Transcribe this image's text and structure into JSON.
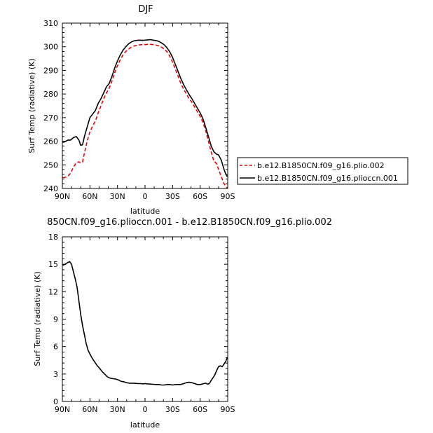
{
  "chart_data": [
    {
      "type": "line",
      "title": "DJF",
      "xlabel": "latitude",
      "ylabel": "Surf Temp (radiative) (K)",
      "xlim": [
        90,
        -90
      ],
      "ylim": [
        240,
        310
      ],
      "xticks": [
        90,
        60,
        30,
        0,
        -30,
        -60,
        -90
      ],
      "xtick_labels": [
        "90N",
        "60N",
        "30N",
        "0",
        "30S",
        "60S",
        "90S"
      ],
      "yticks": [
        240,
        250,
        260,
        270,
        280,
        290,
        300,
        310
      ],
      "ytick_labels": [
        "240",
        "250",
        "260",
        "270",
        "280",
        "290",
        "300",
        "310"
      ],
      "legend_position": "right",
      "series": [
        {
          "name": "b.e12.B1850CN.f09_g16.plio.002",
          "color": "#ee0000",
          "dash": true,
          "x": [
            89.5,
            87,
            84,
            81,
            78,
            75,
            72,
            70,
            68,
            66,
            63,
            60,
            57,
            54,
            51,
            48,
            45,
            42,
            39,
            36,
            33,
            30,
            27,
            24,
            21,
            18,
            15,
            12,
            9,
            6,
            3,
            0,
            -3,
            -6,
            -9,
            -12,
            -15,
            -18,
            -21,
            -24,
            -27,
            -30,
            -33,
            -36,
            -39,
            -42,
            -45,
            -48,
            -51,
            -54,
            -57,
            -60,
            -63,
            -66,
            -69,
            -72,
            -75,
            -78,
            -80,
            -83,
            -86,
            -88,
            -89.5
          ],
          "y": [
            244.5,
            244.7,
            245.2,
            246.5,
            249.0,
            250.8,
            251.3,
            250.8,
            251.2,
            255.0,
            260.0,
            264.0,
            266.5,
            268.5,
            272.0,
            275.0,
            278.0,
            280.5,
            282.5,
            285.5,
            289.0,
            292.0,
            294.5,
            296.5,
            298.0,
            299.0,
            299.8,
            300.3,
            300.6,
            300.8,
            300.9,
            300.9,
            301.0,
            301.0,
            300.9,
            300.7,
            300.4,
            299.8,
            299.0,
            297.8,
            296.0,
            293.5,
            290.5,
            287.5,
            284.5,
            282.0,
            280.0,
            278.0,
            276.5,
            274.5,
            272.5,
            270.5,
            268.0,
            264.5,
            260.0,
            255.5,
            251.5,
            250.5,
            248.0,
            245.0,
            242.0,
            241.0,
            240.0
          ]
        },
        {
          "name": "b.e12.B1850CN.f09_g16.plioccn.001",
          "color": "#000000",
          "dash": false,
          "x": [
            89.5,
            87,
            84,
            81,
            78,
            75,
            72,
            70,
            68,
            66,
            63,
            60,
            57,
            54,
            51,
            48,
            45,
            42,
            39,
            36,
            33,
            30,
            27,
            24,
            21,
            18,
            15,
            12,
            9,
            6,
            3,
            0,
            -3,
            -6,
            -9,
            -12,
            -15,
            -18,
            -21,
            -24,
            -27,
            -30,
            -33,
            -36,
            -39,
            -42,
            -45,
            -48,
            -51,
            -54,
            -57,
            -60,
            -63,
            -66,
            -69,
            -72,
            -75,
            -78,
            -80,
            -83,
            -86,
            -88,
            -89.5
          ],
          "y": [
            259.5,
            259.8,
            260.5,
            260.5,
            261.5,
            262.0,
            260.5,
            258.3,
            258.5,
            262.0,
            266.0,
            270.0,
            271.5,
            273.0,
            276.0,
            278.0,
            280.5,
            283.0,
            284.5,
            287.5,
            291.0,
            294.0,
            296.5,
            298.5,
            300.0,
            301.2,
            302.0,
            302.5,
            302.7,
            302.8,
            302.7,
            302.8,
            302.9,
            303.0,
            302.8,
            302.6,
            302.3,
            301.6,
            300.8,
            299.5,
            297.8,
            295.5,
            292.5,
            289.5,
            286.5,
            284.0,
            281.8,
            279.8,
            278.0,
            276.0,
            274.0,
            272.0,
            269.5,
            266.0,
            262.0,
            258.0,
            255.5,
            254.5,
            254.2,
            252.0,
            248.0,
            246.0,
            245.0
          ]
        }
      ]
    },
    {
      "type": "line",
      "title": "850CN.f09_g16.plioccn.001 - b.e12.B1850CN.f09_g16.plio.002",
      "xlabel": "latitude",
      "ylabel": "Surf Temp (radiative) (K)",
      "xlim": [
        90,
        -90
      ],
      "ylim": [
        0,
        18
      ],
      "xticks": [
        90,
        60,
        30,
        0,
        -30,
        -60,
        -90
      ],
      "xtick_labels": [
        "90N",
        "60N",
        "30N",
        "0",
        "30S",
        "60S",
        "90S"
      ],
      "yticks": [
        0,
        3,
        6,
        9,
        12,
        15,
        18
      ],
      "ytick_labels": [
        "0",
        "3",
        "6",
        "9",
        "12",
        "15",
        "18"
      ],
      "series": [
        {
          "color": "#000000",
          "dash": false,
          "x": [
            89.5,
            87,
            84,
            82,
            80,
            78,
            76,
            74,
            72,
            70,
            68,
            66,
            64,
            62,
            60,
            58,
            56,
            54,
            52,
            50,
            47,
            44,
            41,
            38,
            35,
            32,
            29,
            26,
            23,
            20,
            17,
            14,
            11,
            8,
            5,
            2,
            0,
            -3,
            -6,
            -9,
            -12,
            -15,
            -18,
            -21,
            -24,
            -27,
            -30,
            -33,
            -36,
            -39,
            -42,
            -45,
            -48,
            -51,
            -54,
            -57,
            -60,
            -62,
            -64,
            -66,
            -68,
            -70,
            -72,
            -74,
            -76,
            -78,
            -80,
            -82,
            -84,
            -86,
            -88,
            -89.5
          ],
          "y": [
            14.9,
            15.0,
            15.2,
            15.3,
            15.0,
            14.2,
            13.4,
            12.5,
            11.0,
            9.5,
            8.3,
            7.3,
            6.3,
            5.6,
            5.2,
            4.8,
            4.5,
            4.2,
            3.9,
            3.7,
            3.3,
            3.0,
            2.7,
            2.55,
            2.5,
            2.45,
            2.35,
            2.2,
            2.15,
            2.05,
            2.0,
            2.0,
            1.98,
            1.95,
            1.95,
            1.93,
            1.95,
            1.92,
            1.9,
            1.88,
            1.85,
            1.85,
            1.8,
            1.8,
            1.85,
            1.85,
            1.8,
            1.85,
            1.85,
            1.85,
            1.95,
            2.05,
            2.1,
            2.05,
            1.95,
            1.85,
            1.85,
            1.9,
            1.95,
            2.0,
            1.9,
            1.95,
            2.3,
            2.6,
            2.9,
            3.4,
            3.8,
            3.9,
            3.8,
            4.1,
            4.4,
            4.8
          ]
        }
      ]
    }
  ]
}
